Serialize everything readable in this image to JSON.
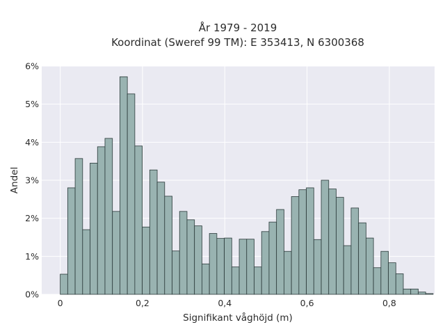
{
  "chart_data": {
    "type": "bar",
    "title_line1": "År 1979 - 2019",
    "title_line2": "Koordinat (Sweref 99 TM): E 353413, N 6300368",
    "xlabel": "Signifikant våghöjd (m)",
    "ylabel": "Andel",
    "xlim": [
      -0.045,
      0.91
    ],
    "ylim": [
      0,
      6
    ],
    "x_ticks": [
      {
        "value": 0.0,
        "label": "0"
      },
      {
        "value": 0.2,
        "label": "0,2"
      },
      {
        "value": 0.4,
        "label": "0,4"
      },
      {
        "value": 0.6,
        "label": "0,6"
      },
      {
        "value": 0.8,
        "label": "0,8"
      }
    ],
    "y_ticks": [
      {
        "value": 0,
        "label": "0%"
      },
      {
        "value": 1,
        "label": "1%"
      },
      {
        "value": 2,
        "label": "2%"
      },
      {
        "value": 3,
        "label": "3%"
      },
      {
        "value": 4,
        "label": "4%"
      },
      {
        "value": 5,
        "label": "5%"
      },
      {
        "value": 6,
        "label": "6%"
      }
    ],
    "bin_start": 0.0,
    "bin_width": 0.01813,
    "values": [
      0.53,
      2.8,
      3.57,
      1.7,
      3.45,
      3.88,
      4.1,
      2.18,
      5.72,
      5.27,
      3.9,
      1.77,
      3.27,
      2.95,
      2.58,
      1.14,
      2.18,
      1.96,
      1.8,
      0.8,
      1.6,
      1.47,
      1.48,
      0.72,
      1.45,
      1.45,
      0.72,
      1.65,
      1.9,
      2.23,
      1.13,
      2.57,
      2.75,
      2.8,
      1.44,
      3.0,
      2.77,
      2.55,
      1.28,
      2.27,
      1.88,
      1.48,
      0.7,
      1.13,
      0.83,
      0.54,
      0.14,
      0.14,
      0.06,
      0.02
    ],
    "colors": {
      "bar_fill": "#99b3b1",
      "bar_edge": "#2b3a3a",
      "plot_bg": "#eaeaf2",
      "grid": "#ffffff",
      "text": "#2b2b2b"
    },
    "grid": true
  }
}
